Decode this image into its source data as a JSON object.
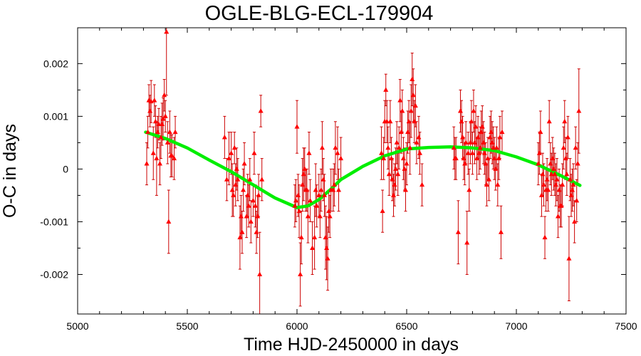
{
  "chart_data": {
    "type": "scatter",
    "title": "OGLE-BLG-ECL-179904",
    "xlabel": "Time HJD-2450000 in days",
    "ylabel": "O-C in days",
    "xlim": [
      5000,
      7500
    ],
    "ylim": [
      -0.00275,
      0.00268
    ],
    "xticks": [
      5000,
      5500,
      6000,
      6500,
      7000,
      7500
    ],
    "xtick_labels": [
      "5000",
      "5500",
      "6000",
      "6500",
      "7000",
      "7500"
    ],
    "yticks": [
      -0.002,
      -0.001,
      0,
      0.001,
      0.002
    ],
    "ytick_labels": [
      "-0.002",
      "-0.001",
      "0",
      "0.001",
      "0.002"
    ],
    "grid": false,
    "legend": "none",
    "colors": {
      "points": "#ff0000",
      "error_bars": "#cc0000",
      "fit": "#00ee00"
    },
    "series": [
      {
        "kind": "points_with_errorbars",
        "marker": "triangle",
        "points": [
          [
            5315,
            0.0001,
            0.0004
          ],
          [
            5320,
            0.0007,
            0.0003
          ],
          [
            5325,
            0.0013,
            0.0003
          ],
          [
            5330,
            0.0011,
            0.0003
          ],
          [
            5335,
            0.00128,
            0.0004
          ],
          [
            5345,
            0.0003,
            0.0005
          ],
          [
            5350,
            0.0013,
            0.0003
          ],
          [
            5355,
            0.0009,
            0.0003
          ],
          [
            5360,
            0.0002,
            0.0007
          ],
          [
            5365,
            0.0007,
            0.0003
          ],
          [
            5370,
            0.00085,
            0.0003
          ],
          [
            5375,
            0.0001,
            0.0004
          ],
          [
            5380,
            0.0006,
            0.0004
          ],
          [
            5385,
            0.00085,
            0.0004
          ],
          [
            5390,
            0.00095,
            0.0004
          ],
          [
            5395,
            0.0014,
            0.0003
          ],
          [
            5400,
            0.001,
            0.0003
          ],
          [
            5405,
            0.0026,
            0.0012
          ],
          [
            5410,
            0.0005,
            0.0004
          ],
          [
            5415,
            -0.001,
            0.0006
          ],
          [
            5420,
            0.0007,
            0.0004
          ],
          [
            5425,
            0.00025,
            0.0004
          ],
          [
            5430,
            0.00025,
            0.0004
          ],
          [
            5440,
            0.0002,
            0.0004
          ],
          [
            5445,
            0.0007,
            0.0003
          ],
          [
            5670,
            0.0006,
            0.0004
          ],
          [
            5680,
            -0.0002,
            0.0004
          ],
          [
            5690,
            0.0002,
            0.0005
          ],
          [
            5700,
            0.0003,
            0.0004
          ],
          [
            5705,
            -0.0004,
            0.0005
          ],
          [
            5710,
            -0.0005,
            0.0004
          ],
          [
            5715,
            0.0004,
            0.0003
          ],
          [
            5720,
            -0.0003,
            0.0004
          ],
          [
            5725,
            0.0,
            0.0004
          ],
          [
            5730,
            -0.0002,
            0.0004
          ],
          [
            5740,
            -0.0013,
            0.0006
          ],
          [
            5745,
            -0.0009,
            0.0004
          ],
          [
            5750,
            -0.0012,
            0.0004
          ],
          [
            5755,
            -0.0004,
            0.0004
          ],
          [
            5760,
            0.0001,
            0.0004
          ],
          [
            5770,
            -0.0009,
            0.0004
          ],
          [
            5775,
            -0.0005,
            0.0004
          ],
          [
            5780,
            -0.0007,
            0.0004
          ],
          [
            5785,
            -0.0002,
            0.0004
          ],
          [
            5790,
            -0.001,
            0.0004
          ],
          [
            5800,
            -0.0006,
            0.0003
          ],
          [
            5805,
            0.0003,
            0.0004
          ],
          [
            5810,
            -0.0007,
            0.0004
          ],
          [
            5815,
            -0.0012,
            0.0004
          ],
          [
            5820,
            -0.0009,
            0.0004
          ],
          [
            5825,
            -0.0005,
            0.0004
          ],
          [
            5830,
            -0.002,
            0.0008
          ],
          [
            5835,
            0.0011,
            0.0003
          ],
          [
            5840,
            -0.0002,
            0.0004
          ],
          [
            5990,
            -0.0007,
            0.0004
          ],
          [
            5995,
            -0.0006,
            0.0004
          ],
          [
            6000,
            0.0008,
            0.0005
          ],
          [
            6005,
            -0.0005,
            0.0004
          ],
          [
            6010,
            -0.0008,
            0.0005
          ],
          [
            6015,
            -0.002,
            0.0006
          ],
          [
            6020,
            -0.0013,
            0.0005
          ],
          [
            6025,
            -0.0003,
            0.0005
          ],
          [
            6030,
            -0.0001,
            0.0005
          ],
          [
            6035,
            0.0,
            0.0004
          ],
          [
            6040,
            -0.0004,
            0.0004
          ],
          [
            6045,
            -0.0004,
            0.0004
          ],
          [
            6050,
            -0.0009,
            0.0005
          ],
          [
            6055,
            0.0003,
            0.0004
          ],
          [
            6060,
            -0.0006,
            0.0004
          ],
          [
            6070,
            -0.0015,
            0.0005
          ],
          [
            6080,
            -0.0013,
            0.0006
          ],
          [
            6085,
            -0.0004,
            0.0005
          ],
          [
            6090,
            -0.0007,
            0.0004
          ],
          [
            6100,
            -0.0005,
            0.0004
          ],
          [
            6105,
            -0.0009,
            0.0004
          ],
          [
            6110,
            -0.0004,
            0.0004
          ],
          [
            6115,
            0.0004,
            0.0005
          ],
          [
            6120,
            -0.0002,
            0.0004
          ],
          [
            6125,
            -0.0005,
            0.0004
          ],
          [
            6130,
            -0.0013,
            0.0006
          ],
          [
            6135,
            -0.0015,
            0.0006
          ],
          [
            6140,
            -0.0017,
            0.0006
          ],
          [
            6145,
            -0.0008,
            0.0004
          ],
          [
            6150,
            -0.0009,
            0.0004
          ],
          [
            6155,
            -0.0004,
            0.0004
          ],
          [
            6165,
            -0.0004,
            0.0004
          ],
          [
            6170,
            -0.0003,
            0.0004
          ],
          [
            6175,
            0.0004,
            0.0005
          ],
          [
            6185,
            0.0003,
            0.0005
          ],
          [
            6190,
            -0.0004,
            0.0004
          ],
          [
            6200,
            0.0002,
            0.0004
          ],
          [
            6385,
            0.0003,
            0.0005
          ],
          [
            6390,
            -0.0008,
            0.0004
          ],
          [
            6395,
            0.0002,
            0.0004
          ],
          [
            6400,
            0.0009,
            0.0004
          ],
          [
            6405,
            0.0015,
            0.0003
          ],
          [
            6410,
            0.0009,
            0.0004
          ],
          [
            6415,
            0.0004,
            0.0004
          ],
          [
            6420,
            -0.0001,
            0.0004
          ],
          [
            6425,
            0.0009,
            0.0004
          ],
          [
            6430,
            0.0002,
            0.0004
          ],
          [
            6435,
            -0.0002,
            0.0004
          ],
          [
            6440,
            -0.0005,
            0.0004
          ],
          [
            6445,
            -0.0003,
            0.0004
          ],
          [
            6450,
            0.0,
            0.0004
          ],
          [
            6455,
            0.0005,
            0.0004
          ],
          [
            6460,
            -0.0001,
            0.0004
          ],
          [
            6465,
            0.0004,
            0.0004
          ],
          [
            6470,
            0.0013,
            0.0004
          ],
          [
            6475,
            0.0007,
            0.0004
          ],
          [
            6480,
            0.0011,
            0.0004
          ],
          [
            6485,
            0.0002,
            0.0004
          ],
          [
            6490,
            0.0,
            0.0004
          ],
          [
            6495,
            -0.0004,
            0.0004
          ],
          [
            6500,
            0.0001,
            0.0004
          ],
          [
            6505,
            0.0007,
            0.0004
          ],
          [
            6510,
            0.0009,
            0.0004
          ],
          [
            6515,
            0.0004,
            0.0005
          ],
          [
            6520,
            0.0011,
            0.0005
          ],
          [
            6525,
            0.0017,
            0.0005
          ],
          [
            6530,
            0.0014,
            0.0005
          ],
          [
            6535,
            0.0009,
            0.0004
          ],
          [
            6540,
            0.0012,
            0.0004
          ],
          [
            6545,
            0.0005,
            0.0004
          ],
          [
            6555,
            0.0006,
            0.0004
          ],
          [
            6560,
            0.0003,
            0.0004
          ],
          [
            6570,
            -0.0003,
            0.0004
          ],
          [
            6715,
            0.0004,
            0.0004
          ],
          [
            6720,
            0.0002,
            0.0004
          ],
          [
            6725,
            0.0002,
            0.0004
          ],
          [
            6735,
            -0.0012,
            0.0006
          ],
          [
            6745,
            0.0011,
            0.0004
          ],
          [
            6750,
            0.0009,
            0.0004
          ],
          [
            6755,
            0.0006,
            0.0004
          ],
          [
            6760,
            0.0002,
            0.0004
          ],
          [
            6765,
            0.0001,
            0.0004
          ],
          [
            6770,
            0.0005,
            0.0004
          ],
          [
            6775,
            -0.0014,
            0.0006
          ],
          [
            6780,
            0.0003,
            0.0004
          ],
          [
            6785,
            -0.0004,
            0.0004
          ],
          [
            6790,
            0.0005,
            0.0004
          ],
          [
            6795,
            0.0009,
            0.0004
          ],
          [
            6800,
            0.0003,
            0.0004
          ],
          [
            6805,
            0.0011,
            0.0004
          ],
          [
            6810,
            0.0005,
            0.0004
          ],
          [
            6815,
            0.0008,
            0.0004
          ],
          [
            6820,
            0.0002,
            0.0004
          ],
          [
            6825,
            0.0006,
            0.0004
          ],
          [
            6830,
            0.0003,
            0.0004
          ],
          [
            6835,
            0.0004,
            0.0004
          ],
          [
            6840,
            0.0007,
            0.0004
          ],
          [
            6845,
            0.0008,
            0.0004
          ],
          [
            6850,
            0.0005,
            0.0004
          ],
          [
            6855,
            0.0003,
            0.0004
          ],
          [
            6860,
            0.0001,
            0.0004
          ],
          [
            6865,
            -0.0003,
            0.0004
          ],
          [
            6870,
            0.0002,
            0.0004
          ],
          [
            6875,
            -0.0002,
            0.0004
          ],
          [
            6880,
            0.0006,
            0.0004
          ],
          [
            6885,
            0.0007,
            0.0004
          ],
          [
            6890,
            0.0005,
            0.0004
          ],
          [
            6895,
            0.0004,
            0.0004
          ],
          [
            6900,
            0.0002,
            0.0004
          ],
          [
            6905,
            0.0,
            0.0004
          ],
          [
            6910,
            0.0004,
            0.0004
          ],
          [
            6915,
            -0.0003,
            0.0004
          ],
          [
            6920,
            0.0002,
            0.0004
          ],
          [
            6925,
            0.0006,
            0.0004
          ],
          [
            6930,
            -0.0012,
            0.0005
          ],
          [
            6935,
            0.0007,
            0.0004
          ],
          [
            7100,
            0.0001,
            0.0004
          ],
          [
            7105,
            0.0003,
            0.0004
          ],
          [
            7110,
            0.0007,
            0.0004
          ],
          [
            7115,
            -0.0005,
            0.0004
          ],
          [
            7120,
            -0.0001,
            0.0004
          ],
          [
            7125,
            -0.0003,
            0.0004
          ],
          [
            7130,
            -0.0013,
            0.0004
          ],
          [
            7135,
            -0.0004,
            0.0004
          ],
          [
            7140,
            -0.0002,
            0.0004
          ],
          [
            7145,
            -0.0004,
            0.0004
          ],
          [
            7150,
            0.0009,
            0.0004
          ],
          [
            7155,
            0.0001,
            0.0004
          ],
          [
            7160,
            -0.0001,
            0.0004
          ],
          [
            7165,
            0.0002,
            0.0004
          ],
          [
            7170,
            0.0,
            0.0004
          ],
          [
            7175,
            -0.0001,
            0.0004
          ],
          [
            7180,
            -0.0003,
            0.0004
          ],
          [
            7185,
            -0.0002,
            0.0004
          ],
          [
            7190,
            -0.0009,
            0.0004
          ],
          [
            7195,
            -0.0004,
            0.0004
          ],
          [
            7200,
            -0.0007,
            0.0004
          ],
          [
            7205,
            -0.0007,
            0.0004
          ],
          [
            7210,
            -0.0003,
            0.0004
          ],
          [
            7215,
            0.0004,
            0.0004
          ],
          [
            7220,
            0.0009,
            0.0004
          ],
          [
            7225,
            0.0002,
            0.0004
          ],
          [
            7230,
            -0.0001,
            0.0004
          ],
          [
            7235,
            0.0006,
            0.0004
          ],
          [
            7240,
            -0.0017,
            0.0008
          ],
          [
            7245,
            -0.0002,
            0.0004
          ],
          [
            7250,
            -0.0005,
            0.0004
          ],
          [
            7255,
            -0.0004,
            0.0004
          ],
          [
            7260,
            -0.0003,
            0.0004
          ],
          [
            7265,
            -0.001,
            0.0004
          ],
          [
            7270,
            0.0004,
            0.0004
          ],
          [
            7275,
            -0.0006,
            0.0004
          ],
          [
            7280,
            0.0001,
            0.0004
          ],
          [
            7285,
            0.0011,
            0.0008
          ]
        ]
      },
      {
        "kind": "fit_curve",
        "x": [
          5310,
          5400,
          5500,
          5600,
          5700,
          5800,
          5900,
          6000,
          6050,
          6100,
          6150,
          6200,
          6300,
          6400,
          6500,
          6600,
          6700,
          6800,
          6900,
          7000,
          7100,
          7200,
          7290
        ],
        "y": [
          0.0007,
          0.00058,
          0.0004,
          0.00017,
          -5e-05,
          -0.0003,
          -0.00055,
          -0.00073,
          -0.0007,
          -0.00058,
          -0.0004,
          -0.0002,
          5e-05,
          0.00025,
          0.00038,
          0.00041,
          0.00042,
          0.0004,
          0.00035,
          0.00023,
          8e-05,
          -0.00012,
          -0.00031
        ]
      }
    ]
  }
}
